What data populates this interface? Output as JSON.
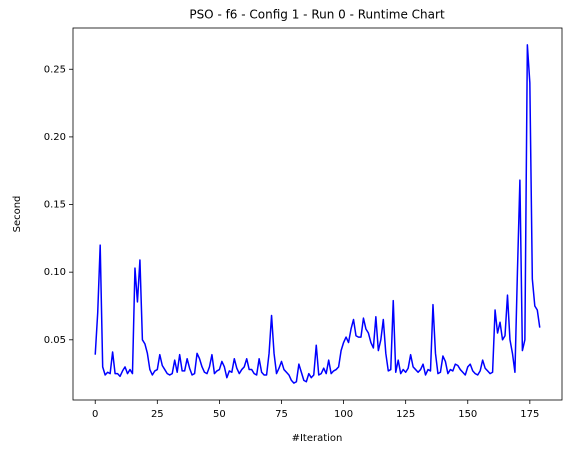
{
  "chart_data": {
    "type": "line",
    "title": "PSO - f6 - Config 1 - Run 0 - Runtime Chart",
    "x_label": "#Iteration",
    "y_label": "Second",
    "x": [
      0,
      1,
      2,
      3,
      4,
      5,
      6,
      7,
      8,
      9,
      10,
      11,
      12,
      13,
      14,
      15,
      16,
      17,
      18,
      19,
      20,
      21,
      22,
      23,
      24,
      25,
      26,
      27,
      28,
      29,
      30,
      31,
      32,
      33,
      34,
      35,
      36,
      37,
      38,
      39,
      40,
      41,
      42,
      43,
      44,
      45,
      46,
      47,
      48,
      49,
      50,
      51,
      52,
      53,
      54,
      55,
      56,
      57,
      58,
      59,
      60,
      61,
      62,
      63,
      64,
      65,
      66,
      67,
      68,
      69,
      70,
      71,
      72,
      73,
      74,
      75,
      76,
      77,
      78,
      79,
      80,
      81,
      82,
      83,
      84,
      85,
      86,
      87,
      88,
      89,
      90,
      91,
      92,
      93,
      94,
      95,
      96,
      97,
      98,
      99,
      100,
      101,
      102,
      103,
      104,
      105,
      106,
      107,
      108,
      109,
      110,
      111,
      112,
      113,
      114,
      115,
      116,
      117,
      118,
      119,
      120,
      121,
      122,
      123,
      124,
      125,
      126,
      127,
      128,
      129,
      130,
      131,
      132,
      133,
      134,
      135,
      136,
      137,
      138,
      139,
      140,
      141,
      142,
      143,
      144,
      145,
      146,
      147,
      148,
      149,
      150,
      151,
      152,
      153,
      154,
      155,
      156,
      157,
      158,
      159,
      160,
      161,
      162,
      163,
      164,
      165,
      166,
      167,
      168,
      169,
      170,
      171,
      172,
      173,
      174,
      175,
      176,
      177,
      178,
      179
    ],
    "series": [
      {
        "color": "#0000ff",
        "values": [
          0.039,
          0.07,
          0.12,
          0.03,
          0.024,
          0.026,
          0.025,
          0.041,
          0.025,
          0.025,
          0.023,
          0.027,
          0.03,
          0.025,
          0.028,
          0.025,
          0.103,
          0.078,
          0.109,
          0.05,
          0.047,
          0.04,
          0.028,
          0.024,
          0.027,
          0.028,
          0.039,
          0.031,
          0.028,
          0.025,
          0.024,
          0.025,
          0.035,
          0.026,
          0.039,
          0.027,
          0.027,
          0.036,
          0.029,
          0.024,
          0.025,
          0.04,
          0.036,
          0.03,
          0.026,
          0.025,
          0.03,
          0.039,
          0.025,
          0.027,
          0.028,
          0.034,
          0.03,
          0.022,
          0.027,
          0.026,
          0.036,
          0.029,
          0.025,
          0.028,
          0.03,
          0.036,
          0.028,
          0.028,
          0.025,
          0.024,
          0.036,
          0.026,
          0.024,
          0.024,
          0.04,
          0.068,
          0.04,
          0.025,
          0.029,
          0.034,
          0.028,
          0.026,
          0.024,
          0.02,
          0.018,
          0.019,
          0.032,
          0.026,
          0.02,
          0.019,
          0.025,
          0.022,
          0.024,
          0.046,
          0.024,
          0.025,
          0.029,
          0.025,
          0.035,
          0.025,
          0.027,
          0.028,
          0.03,
          0.042,
          0.048,
          0.052,
          0.048,
          0.058,
          0.065,
          0.053,
          0.052,
          0.052,
          0.066,
          0.058,
          0.055,
          0.048,
          0.044,
          0.067,
          0.042,
          0.05,
          0.065,
          0.04,
          0.027,
          0.028,
          0.079,
          0.026,
          0.035,
          0.025,
          0.028,
          0.026,
          0.029,
          0.039,
          0.03,
          0.028,
          0.026,
          0.028,
          0.032,
          0.024,
          0.028,
          0.027,
          0.076,
          0.04,
          0.025,
          0.026,
          0.038,
          0.034,
          0.025,
          0.028,
          0.027,
          0.032,
          0.031,
          0.028,
          0.026,
          0.024,
          0.03,
          0.032,
          0.027,
          0.025,
          0.024,
          0.027,
          0.035,
          0.029,
          0.027,
          0.025,
          0.026,
          0.072,
          0.055,
          0.063,
          0.05,
          0.053,
          0.083,
          0.05,
          0.04,
          0.026,
          0.1,
          0.168,
          0.042,
          0.05,
          0.268,
          0.24,
          0.095,
          0.075,
          0.072,
          0.059
        ]
      }
    ],
    "xlim": [
      -8.95,
      187.95
    ],
    "xticks": [
      0,
      25,
      50,
      75,
      100,
      125,
      150,
      175
    ],
    "ylim": [
      0.0055,
      0.2805
    ],
    "yticks": [
      0.05,
      {
        "value": 0.1,
        "label": "0.10"
      },
      0.15,
      {
        "value": 0.2,
        "label": "0.20"
      },
      0.25
    ]
  }
}
